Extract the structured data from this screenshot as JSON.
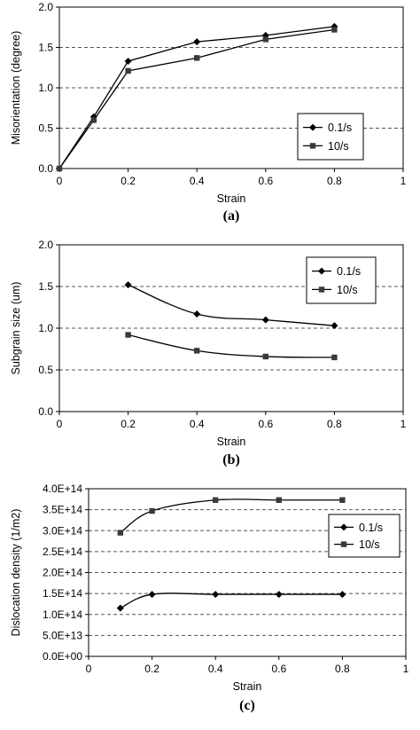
{
  "chart_data": [
    {
      "type": "line",
      "panel_label": "(a)",
      "xlabel": "Strain",
      "ylabel": "Misorientation (degree)",
      "xlim": [
        0,
        1
      ],
      "ylim": [
        0,
        2
      ],
      "x_ticks": [
        "0",
        "0.2",
        "0.4",
        "0.6",
        "0.8",
        "1"
      ],
      "y_ticks": [
        "0.0",
        "0.5",
        "1.0",
        "1.5",
        "2.0"
      ],
      "grid": "horizontal dashed",
      "smooth": false,
      "legend_position": "right",
      "series": [
        {
          "name": "0.1/s",
          "marker": "diamond",
          "x": [
            0,
            0.1,
            0.2,
            0.4,
            0.6,
            0.8
          ],
          "y": [
            0,
            0.64,
            1.33,
            1.57,
            1.65,
            1.76
          ]
        },
        {
          "name": "10/s",
          "marker": "square",
          "x": [
            0,
            0.1,
            0.2,
            0.4,
            0.6,
            0.8
          ],
          "y": [
            0,
            0.6,
            1.21,
            1.37,
            1.6,
            1.72
          ]
        }
      ]
    },
    {
      "type": "line",
      "panel_label": "(b)",
      "xlabel": "Strain",
      "ylabel": "Subgrain size (um)",
      "xlim": [
        0,
        1
      ],
      "ylim": [
        0,
        2
      ],
      "x_ticks": [
        "0",
        "0.2",
        "0.4",
        "0.6",
        "0.8",
        "1"
      ],
      "y_ticks": [
        "0.0",
        "0.5",
        "1.0",
        "1.5",
        "2.0"
      ],
      "grid": "horizontal dashed",
      "smooth": true,
      "legend_position": "top-right",
      "series": [
        {
          "name": "0.1/s",
          "marker": "diamond",
          "x": [
            0.2,
            0.4,
            0.6,
            0.8
          ],
          "y": [
            1.52,
            1.17,
            1.1,
            1.03
          ]
        },
        {
          "name": "10/s",
          "marker": "square",
          "x": [
            0.2,
            0.4,
            0.6,
            0.8
          ],
          "y": [
            0.92,
            0.73,
            0.66,
            0.65
          ]
        }
      ]
    },
    {
      "type": "line",
      "panel_label": "(c)",
      "xlabel": "Strain",
      "ylabel": "Dislocation density (1/m2)",
      "xlim": [
        0,
        1
      ],
      "ylim": [
        0,
        400000000000000.0
      ],
      "x_ticks": [
        "0",
        "0.2",
        "0.4",
        "0.6",
        "0.8",
        "1"
      ],
      "y_ticks": [
        "0.0E+00",
        "5.0E+13",
        "1.0E+14",
        "1.5E+14",
        "2.0E+14",
        "2.5E+14",
        "3.0E+14",
        "3.5E+14",
        "4.0E+14"
      ],
      "grid": "horizontal dashed",
      "smooth": true,
      "legend_position": "right",
      "series": [
        {
          "name": "0.1/s",
          "marker": "diamond",
          "x": [
            0.1,
            0.2,
            0.4,
            0.6,
            0.8
          ],
          "y": [
            115000000000000.0,
            148000000000000.0,
            148000000000000.0,
            148000000000000.0,
            148000000000000.0
          ]
        },
        {
          "name": "10/s",
          "marker": "square",
          "x": [
            0.1,
            0.2,
            0.4,
            0.6,
            0.8
          ],
          "y": [
            295000000000000.0,
            347000000000000.0,
            373000000000000.0,
            373000000000000.0,
            373000000000000.0
          ]
        }
      ]
    }
  ]
}
